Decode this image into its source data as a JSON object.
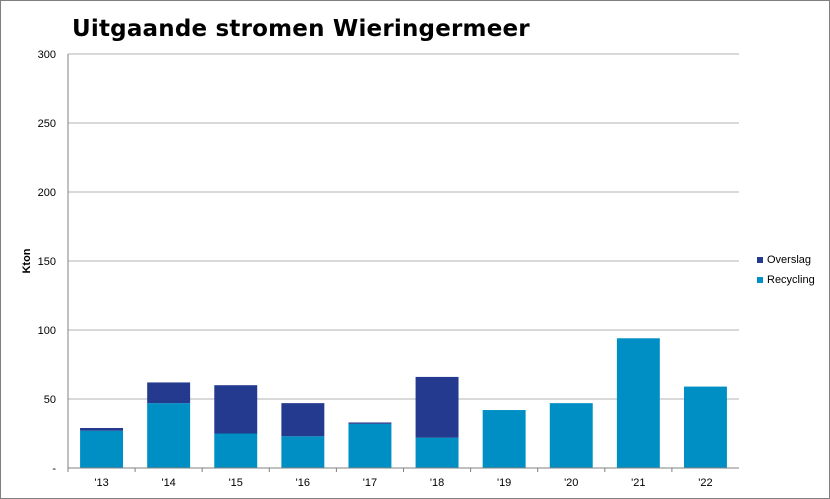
{
  "chart_data": {
    "type": "bar",
    "stacked": true,
    "title": "Uitgaande stromen Wieringermeer",
    "ylabel": "Kton",
    "xlabel": "",
    "ylim": [
      0,
      300
    ],
    "yticks": [
      0,
      50,
      100,
      150,
      200,
      250,
      300
    ],
    "ytick_labels": [
      "-",
      "50",
      "100",
      "150",
      "200",
      "250",
      "300"
    ],
    "categories": [
      "'13",
      "'14",
      "'15",
      "'16",
      "'17",
      "'18",
      "'19",
      "'20",
      "'21",
      "'22"
    ],
    "series": [
      {
        "name": "Recycling",
        "color": "#008fc4",
        "values": [
          27,
          47,
          25,
          23,
          32,
          22,
          42,
          47,
          94,
          59
        ]
      },
      {
        "name": "Overslag",
        "color": "#233a8e",
        "values": [
          2,
          15,
          35,
          24,
          1,
          44,
          0,
          0,
          0,
          0
        ]
      }
    ],
    "grid": true,
    "legend": "right",
    "legend_order": [
      "Overslag",
      "Recycling"
    ]
  }
}
